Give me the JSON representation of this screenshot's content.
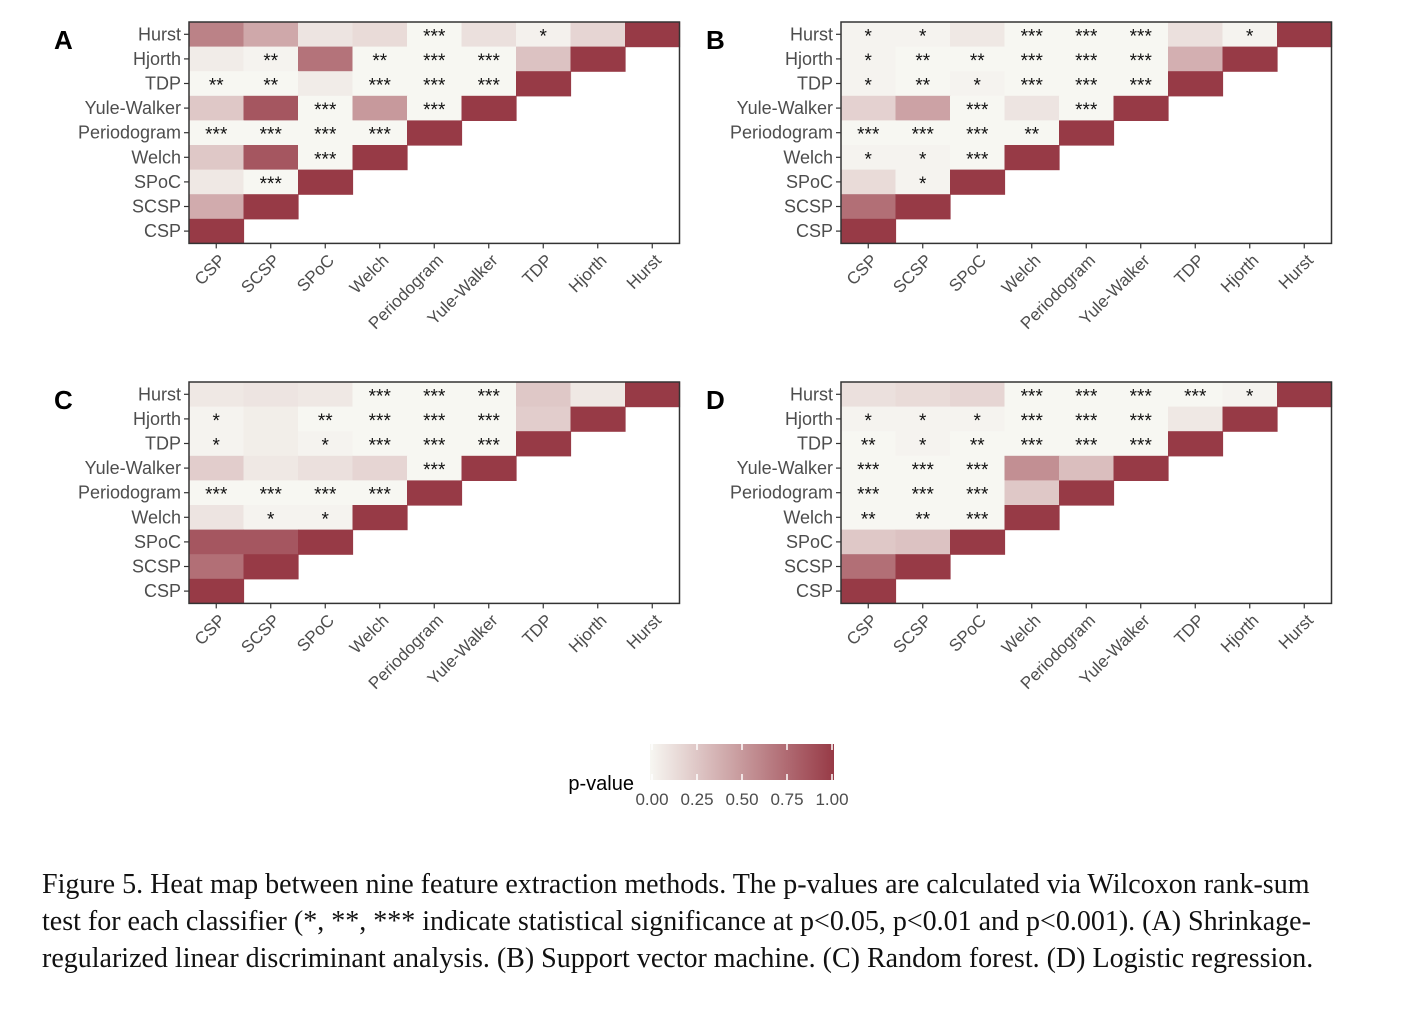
{
  "caption": "Figure 5. Heat map between nine feature extraction methods. The p-values are calculated via Wilcoxon rank-sum test for each classifier (*, **, *** indicate statistical significance at p<0.05, p<0.01 and p<0.001). (A) Shrinkage-regularized linear discriminant analysis. (B) Support vector machine. (C) Random forest. (D) Logistic regression.",
  "chart_data": {
    "type": "heatmap",
    "methods": [
      "CSP",
      "SCSP",
      "SPoC",
      "Welch",
      "Periodogram",
      "Yule-Walker",
      "TDP",
      "Hjorth",
      "Hurst"
    ],
    "color_low": "#f7f7f2",
    "color_high": "#973a46",
    "legend": {
      "title": "p-value",
      "ticks": [
        "0.00",
        "0.25",
        "0.50",
        "0.75",
        "1.00"
      ],
      "range": [
        0,
        1
      ],
      "placement": "bottom"
    },
    "panels": [
      {
        "label": "A",
        "rows": [
          {
            "row": "Hurst",
            "values": [
              0.62,
              0.42,
              0.1,
              0.15,
              0.0,
              0.12,
              0.03,
              0.18,
              1.0
            ],
            "signif": [
              "",
              "",
              "",
              "",
              "***",
              "",
              "*",
              "",
              ""
            ]
          },
          {
            "row": "Hjorth",
            "values": [
              0.06,
              0.02,
              0.7,
              0.0,
              0.0,
              0.0,
              0.28,
              1.0
            ],
            "signif": [
              "",
              "**",
              "",
              "**",
              "***",
              "***",
              "",
              ""
            ]
          },
          {
            "row": "TDP",
            "values": [
              0.0,
              0.0,
              0.06,
              0.0,
              0.0,
              0.0,
              1.0
            ],
            "signif": [
              "**",
              "**",
              "",
              "***",
              "***",
              "***",
              ""
            ]
          },
          {
            "row": "Yule-Walker",
            "values": [
              0.25,
              0.85,
              0.0,
              0.5,
              0.0,
              1.0
            ],
            "signif": [
              "",
              "",
              "***",
              "",
              "***",
              ""
            ]
          },
          {
            "row": "Periodogram",
            "values": [
              0.0,
              0.0,
              0.0,
              0.0,
              1.0
            ],
            "signif": [
              "***",
              "***",
              "***",
              "***",
              ""
            ]
          },
          {
            "row": "Welch",
            "values": [
              0.25,
              0.85,
              0.0,
              1.0
            ],
            "signif": [
              "",
              "",
              "***",
              ""
            ]
          },
          {
            "row": "SPoC",
            "values": [
              0.08,
              0.0,
              1.0
            ],
            "signif": [
              "",
              "***",
              ""
            ]
          },
          {
            "row": "SCSP",
            "values": [
              0.4,
              1.0
            ],
            "signif": [
              "",
              ""
            ]
          },
          {
            "row": "CSP",
            "values": [
              1.0
            ],
            "signif": [
              ""
            ]
          }
        ]
      },
      {
        "label": "B",
        "rows": [
          {
            "row": "Hurst",
            "values": [
              0.02,
              0.02,
              0.08,
              0.0,
              0.0,
              0.0,
              0.12,
              0.02,
              1.0
            ],
            "signif": [
              "*",
              "*",
              "",
              "***",
              "***",
              "***",
              "",
              "*",
              ""
            ]
          },
          {
            "row": "Hjorth",
            "values": [
              0.02,
              0.0,
              0.0,
              0.0,
              0.0,
              0.0,
              0.38,
              1.0
            ],
            "signif": [
              "*",
              "**",
              "**",
              "***",
              "***",
              "***",
              "",
              ""
            ]
          },
          {
            "row": "TDP",
            "values": [
              0.02,
              0.0,
              0.02,
              0.0,
              0.0,
              0.0,
              1.0
            ],
            "signif": [
              "*",
              "**",
              "*",
              "***",
              "***",
              "***",
              ""
            ]
          },
          {
            "row": "Yule-Walker",
            "values": [
              0.2,
              0.45,
              0.0,
              0.1,
              0.0,
              1.0
            ],
            "signif": [
              "",
              "",
              "***",
              "",
              "***",
              ""
            ]
          },
          {
            "row": "Periodogram",
            "values": [
              0.0,
              0.0,
              0.0,
              0.0,
              1.0
            ],
            "signif": [
              "***",
              "***",
              "***",
              "**",
              ""
            ]
          },
          {
            "row": "Welch",
            "values": [
              0.02,
              0.02,
              0.0,
              1.0
            ],
            "signif": [
              "*",
              "*",
              "***",
              ""
            ]
          },
          {
            "row": "SPoC",
            "values": [
              0.15,
              0.02,
              1.0
            ],
            "signif": [
              "",
              "*",
              ""
            ]
          },
          {
            "row": "SCSP",
            "values": [
              0.72,
              1.0
            ],
            "signif": [
              "",
              ""
            ]
          },
          {
            "row": "CSP",
            "values": [
              1.0
            ],
            "signif": [
              ""
            ]
          }
        ]
      },
      {
        "label": "C",
        "rows": [
          {
            "row": "Hurst",
            "values": [
              0.08,
              0.1,
              0.08,
              0.0,
              0.0,
              0.0,
              0.25,
              0.08,
              1.0
            ],
            "signif": [
              "",
              "",
              "",
              "***",
              "***",
              "***",
              "",
              "",
              ""
            ]
          },
          {
            "row": "Hjorth",
            "values": [
              0.02,
              0.05,
              0.0,
              0.0,
              0.0,
              0.0,
              0.22,
              1.0
            ],
            "signif": [
              "*",
              "",
              "**",
              "***",
              "***",
              "***",
              "",
              ""
            ]
          },
          {
            "row": "TDP",
            "values": [
              0.02,
              0.05,
              0.02,
              0.0,
              0.0,
              0.0,
              1.0
            ],
            "signif": [
              "*",
              "",
              "*",
              "***",
              "***",
              "***",
              ""
            ]
          },
          {
            "row": "Yule-Walker",
            "values": [
              0.22,
              0.08,
              0.12,
              0.18,
              0.0,
              1.0
            ],
            "signif": [
              "",
              "",
              "",
              "",
              "***",
              ""
            ]
          },
          {
            "row": "Periodogram",
            "values": [
              0.0,
              0.0,
              0.0,
              0.0,
              1.0
            ],
            "signif": [
              "***",
              "***",
              "***",
              "***",
              ""
            ]
          },
          {
            "row": "Welch",
            "values": [
              0.1,
              0.02,
              0.02,
              1.0
            ],
            "signif": [
              "",
              "*",
              "*",
              ""
            ]
          },
          {
            "row": "SPoC",
            "values": [
              0.85,
              0.85,
              1.0
            ],
            "signif": [
              "",
              "",
              ""
            ]
          },
          {
            "row": "SCSP",
            "values": [
              0.72,
              1.0
            ],
            "signif": [
              "",
              ""
            ]
          },
          {
            "row": "CSP",
            "values": [
              1.0
            ],
            "signif": [
              ""
            ]
          }
        ]
      },
      {
        "label": "D",
        "rows": [
          {
            "row": "Hurst",
            "values": [
              0.12,
              0.15,
              0.18,
              0.0,
              0.0,
              0.0,
              0.0,
              0.02,
              1.0
            ],
            "signif": [
              "",
              "",
              "",
              "***",
              "***",
              "***",
              "***",
              "*",
              ""
            ]
          },
          {
            "row": "Hjorth",
            "values": [
              0.02,
              0.02,
              0.02,
              0.0,
              0.0,
              0.0,
              0.08,
              1.0
            ],
            "signif": [
              "*",
              "*",
              "*",
              "***",
              "***",
              "***",
              "",
              ""
            ]
          },
          {
            "row": "TDP",
            "values": [
              0.0,
              0.02,
              0.0,
              0.0,
              0.0,
              0.0,
              1.0
            ],
            "signif": [
              "**",
              "*",
              "**",
              "***",
              "***",
              "***",
              ""
            ]
          },
          {
            "row": "Yule-Walker",
            "values": [
              0.0,
              0.0,
              0.0,
              0.55,
              0.3,
              1.0
            ],
            "signif": [
              "***",
              "***",
              "***",
              "",
              "",
              ""
            ]
          },
          {
            "row": "Periodogram",
            "values": [
              0.0,
              0.0,
              0.0,
              0.25,
              1.0
            ],
            "signif": [
              "***",
              "***",
              "***",
              "",
              ""
            ]
          },
          {
            "row": "Welch",
            "values": [
              0.0,
              0.0,
              0.0,
              1.0
            ],
            "signif": [
              "**",
              "**",
              "***",
              ""
            ]
          },
          {
            "row": "SPoC",
            "values": [
              0.25,
              0.28,
              1.0
            ],
            "signif": [
              "",
              "",
              ""
            ]
          },
          {
            "row": "SCSP",
            "values": [
              0.72,
              1.0
            ],
            "signif": [
              "",
              ""
            ]
          },
          {
            "row": "CSP",
            "values": [
              1.0
            ],
            "signif": [
              ""
            ]
          }
        ]
      }
    ]
  }
}
